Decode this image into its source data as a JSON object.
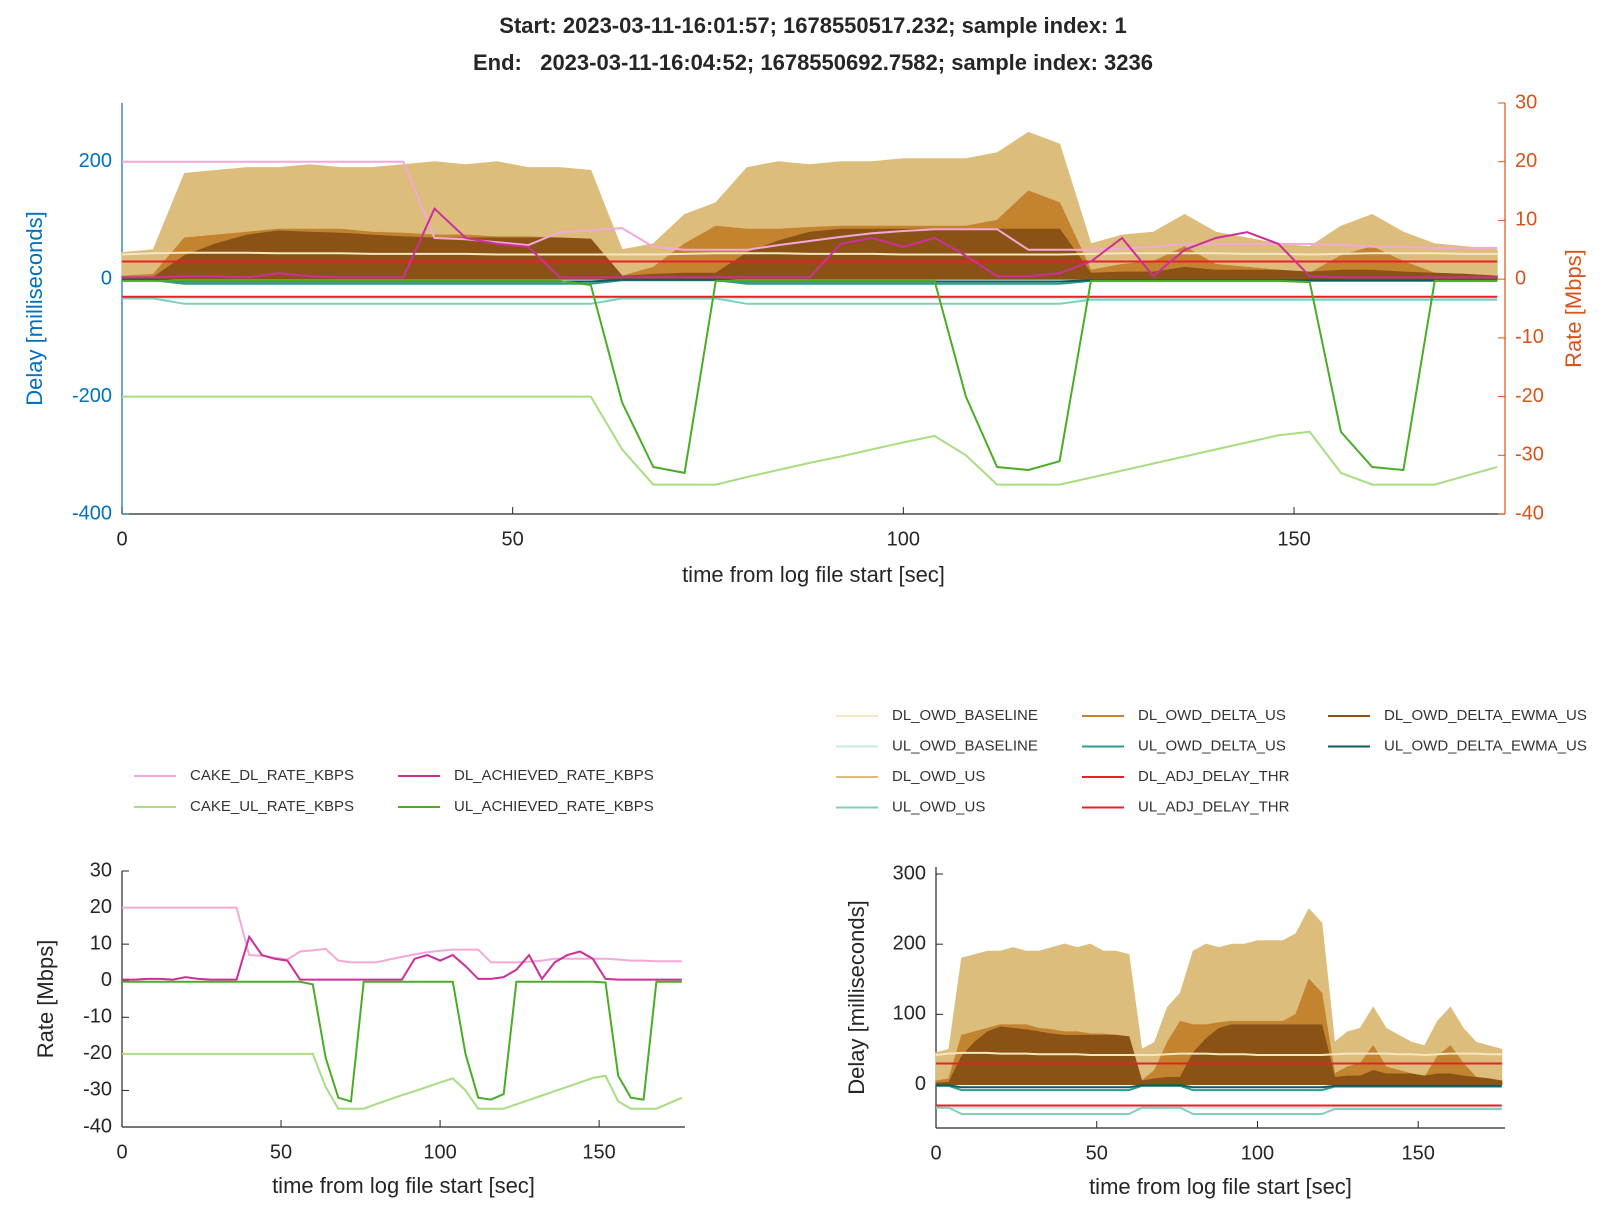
{
  "chart_data": [
    {
      "type": "line",
      "title": "Start: 2023-03-11-16:01:57; 1678550517.232; sample index: 1",
      "subtitle": "End:   2023-03-11-16:04:52; 1678550692.7582; sample index: 3236",
      "xlabel": "time from log file start [sec]",
      "ylabel": "Delay [milliseconds]",
      "y2label": "Rate [Mbps]",
      "xlim": [
        0,
        177
      ],
      "xticks": [
        0,
        50,
        100,
        150
      ],
      "ylim": [
        -400,
        300
      ],
      "yticks": [
        -400,
        -200,
        0,
        200
      ],
      "ycolor": "#0072bd",
      "y2lim": [
        -40,
        30
      ],
      "y2ticks": [
        -40,
        -30,
        -20,
        -10,
        0,
        10,
        20,
        30
      ],
      "y2color": "#d95319"
    },
    {
      "type": "line",
      "xlabel": "time from log file start [sec]",
      "ylabel": "Rate [Mbps]",
      "xlim": [
        0,
        177
      ],
      "xticks": [
        0,
        50,
        100,
        150
      ],
      "ylim": [
        -40,
        30
      ],
      "yticks": [
        -40,
        -30,
        -20,
        -10,
        0,
        10,
        20,
        30
      ],
      "x": [
        0,
        4,
        8,
        12,
        16,
        20,
        24,
        28,
        32,
        36,
        40,
        44,
        48,
        52,
        56,
        60,
        64,
        68,
        72,
        76,
        80,
        84,
        88,
        92,
        96,
        100,
        104,
        108,
        112,
        116,
        120,
        124,
        128,
        132,
        136,
        140,
        144,
        148,
        152,
        156,
        160,
        164,
        168,
        172,
        176
      ],
      "series": [
        {
          "name": "CAKE_DL_RATE_KBPS",
          "color": "#f4a8d8",
          "axis": "y2",
          "values": [
            20,
            20,
            20,
            20,
            20,
            20,
            20,
            20,
            20,
            20,
            7,
            6.8,
            6.3,
            5.8,
            8,
            8.3,
            8.7,
            5.5,
            5,
            5,
            5,
            5.8,
            6.5,
            7.2,
            7.8,
            8.2,
            8.5,
            8.5,
            8.5,
            5,
            5,
            5,
            5.2,
            5.5,
            6,
            6,
            6,
            6,
            6,
            5.8,
            5.5,
            5.5,
            5.3,
            5.3,
            5.3
          ]
        },
        {
          "name": "CAKE_UL_RATE_KBPS",
          "color": "#a8dd80",
          "axis": "y2",
          "values": [
            -20,
            -20,
            -20,
            -20,
            -20,
            -20,
            -20,
            -20,
            -20,
            -20,
            -20,
            -20,
            -20,
            -20,
            -20,
            -20,
            -29,
            -35,
            -35,
            -35,
            -33.7,
            -32.5,
            -31.3,
            -30.2,
            -29,
            -27.8,
            -26.7,
            -30,
            -35,
            -35,
            -35,
            -33.8,
            -32.6,
            -31.4,
            -30.2,
            -29,
            -27.8,
            -26.6,
            -26,
            -33,
            -35,
            -35,
            -35,
            -33.5,
            -32
          ]
        },
        {
          "name": "DL_ACHIEVED_RATE_KBPS",
          "color": "#cc2f9a",
          "axis": "y2",
          "values": [
            0.3,
            0.3,
            0.5,
            0.5,
            0.3,
            1,
            0.5,
            0.3,
            0.3,
            0.3,
            12,
            7,
            6,
            5.5,
            0.3,
            0.3,
            0.3,
            0.3,
            0.3,
            0.3,
            0.3,
            0.3,
            0.3,
            6,
            7,
            5.5,
            7,
            4,
            0.5,
            0.5,
            1,
            3,
            7,
            0.5,
            5,
            7,
            8,
            6,
            0.5,
            0.3,
            0.3,
            0.3,
            0.3,
            0.3,
            0.3
          ]
        },
        {
          "name": "UL_ACHIEVED_RATE_KBPS",
          "color": "#4aac27",
          "axis": "y2",
          "values": [
            -0.3,
            -0.3,
            -0.3,
            -0.3,
            -0.3,
            -0.3,
            -0.3,
            -0.3,
            -0.3,
            -0.3,
            -0.3,
            -0.3,
            -0.3,
            -0.3,
            -0.3,
            -1,
            -21,
            -32,
            -33,
            -0.3,
            -0.3,
            -0.3,
            -0.3,
            -0.3,
            -0.3,
            -0.3,
            -0.3,
            -20,
            -32,
            -32.5,
            -31,
            -0.3,
            -0.3,
            -0.3,
            -0.3,
            -0.3,
            -0.3,
            -0.3,
            -0.5,
            -26,
            -32,
            -32.5,
            -0.3,
            -0.3,
            -0.3
          ]
        }
      ]
    },
    {
      "type": "line",
      "xlabel": "time from log file start [sec]",
      "ylabel": "Delay [milliseconds]",
      "xlim": [
        0,
        177
      ],
      "xticks": [
        0,
        50,
        100,
        150
      ],
      "ylim": [
        -62,
        310
      ],
      "yticks": [
        0,
        100,
        200,
        300
      ],
      "x": [
        0,
        4,
        8,
        12,
        16,
        20,
        24,
        28,
        32,
        36,
        40,
        44,
        48,
        52,
        56,
        60,
        64,
        68,
        72,
        76,
        80,
        84,
        88,
        92,
        96,
        100,
        104,
        108,
        112,
        116,
        120,
        124,
        128,
        132,
        136,
        140,
        144,
        148,
        152,
        156,
        160,
        164,
        168,
        172,
        176
      ],
      "series": [
        {
          "name": "DL_OWD_BASELINE",
          "color": "#f5e6c2",
          "values": [
            42,
            44,
            45,
            45,
            45,
            44,
            44,
            44,
            43,
            43,
            43,
            43,
            42,
            42,
            42,
            42,
            42,
            42,
            43,
            44,
            44,
            44,
            43,
            43,
            43,
            42,
            42,
            42,
            42,
            42,
            42,
            43,
            44,
            44,
            44,
            44,
            43,
            43,
            42,
            43,
            44,
            44,
            44,
            43,
            43
          ]
        },
        {
          "name": "UL_OWD_BASELINE",
          "color": "#c8eae6",
          "values": [
            -33,
            -33,
            -33,
            -33,
            -33,
            -33,
            -33,
            -33,
            -33,
            -33,
            -33,
            -33,
            -33,
            -33,
            -33,
            -33,
            -33,
            -33,
            -33,
            -33,
            -33,
            -33,
            -33,
            -33,
            -33,
            -33,
            -33,
            -33,
            -33,
            -33,
            -33,
            -33,
            -33,
            -33,
            -33,
            -33,
            -33,
            -33,
            -33,
            -33,
            -33,
            -33,
            -33,
            -33,
            -33
          ]
        },
        {
          "name": "DL_OWD_US",
          "color": "#dcbd7c",
          "area": true,
          "values": [
            45,
            50,
            180,
            185,
            190,
            190,
            195,
            190,
            190,
            195,
            200,
            195,
            200,
            190,
            190,
            185,
            50,
            60,
            110,
            130,
            190,
            200,
            195,
            200,
            200,
            205,
            205,
            205,
            215,
            250,
            230,
            60,
            75,
            80,
            110,
            80,
            70,
            60,
            55,
            90,
            110,
            80,
            60,
            55,
            50
          ]
        },
        {
          "name": "UL_OWD_US",
          "color": "#7fcfc0",
          "values": [
            -33,
            -33,
            -42,
            -42,
            -42,
            -42,
            -42,
            -42,
            -42,
            -42,
            -42,
            -42,
            -42,
            -42,
            -42,
            -42,
            -33,
            -33,
            -33,
            -33,
            -42,
            -42,
            -42,
            -42,
            -42,
            -42,
            -42,
            -42,
            -42,
            -42,
            -42,
            -35,
            -35,
            -35,
            -35,
            -35,
            -35,
            -35,
            -35,
            -35,
            -35,
            -35,
            -35,
            -35,
            -35
          ]
        },
        {
          "name": "DL_OWD_DELTA_US",
          "color": "#c3832f",
          "area": true,
          "values": [
            5,
            8,
            70,
            75,
            80,
            85,
            85,
            85,
            80,
            78,
            75,
            75,
            72,
            72,
            70,
            68,
            5,
            20,
            60,
            90,
            85,
            85,
            88,
            90,
            90,
            90,
            90,
            90,
            100,
            150,
            130,
            15,
            25,
            30,
            55,
            25,
            20,
            15,
            10,
            40,
            55,
            30,
            10,
            8,
            5
          ]
        },
        {
          "name": "UL_OWD_DELTA_US",
          "color": "#2a9d8f",
          "values": [
            -2,
            -2,
            -8,
            -8,
            -8,
            -8,
            -8,
            -8,
            -8,
            -8,
            -8,
            -8,
            -8,
            -8,
            -8,
            -8,
            -2,
            -2,
            -2,
            -2,
            -8,
            -8,
            -8,
            -8,
            -8,
            -8,
            -8,
            -8,
            -8,
            -8,
            -8,
            -3,
            -3,
            -3,
            -3,
            -3,
            -3,
            -3,
            -3,
            -3,
            -3,
            -3,
            -3,
            -3,
            -3
          ]
        },
        {
          "name": "DL_ADJ_DELAY_THR",
          "color": "#e8202a",
          "values": [
            30,
            30,
            30,
            30,
            30,
            30,
            30,
            30,
            30,
            30,
            30,
            30,
            30,
            30,
            30,
            30,
            30,
            30,
            30,
            30,
            30,
            30,
            30,
            30,
            30,
            30,
            30,
            30,
            30,
            30,
            30,
            30,
            30,
            30,
            30,
            30,
            30,
            30,
            30,
            30,
            30,
            30,
            30,
            30,
            30
          ]
        },
        {
          "name": "UL_ADJ_DELAY_THR",
          "color": "#e8202a",
          "values": [
            -30,
            -30,
            -30,
            -30,
            -30,
            -30,
            -30,
            -30,
            -30,
            -30,
            -30,
            -30,
            -30,
            -30,
            -30,
            -30,
            -30,
            -30,
            -30,
            -30,
            -30,
            -30,
            -30,
            -30,
            -30,
            -30,
            -30,
            -30,
            -30,
            -30,
            -30,
            -30,
            -30,
            -30,
            -30,
            -30,
            -30,
            -30,
            -30,
            -30,
            -30,
            -30,
            -30,
            -30,
            -30
          ]
        },
        {
          "name": "DL_OWD_DELTA_EWMA_US",
          "color": "#8b5216",
          "area": true,
          "values": [
            2,
            3,
            40,
            60,
            75,
            82,
            80,
            78,
            75,
            72,
            70,
            70,
            70,
            70,
            70,
            68,
            5,
            8,
            10,
            10,
            45,
            65,
            80,
            85,
            85,
            85,
            85,
            85,
            85,
            85,
            85,
            10,
            12,
            12,
            20,
            15,
            15,
            15,
            12,
            15,
            15,
            12,
            10,
            8,
            5
          ]
        },
        {
          "name": "UL_OWD_DELTA_EWMA_US",
          "color": "#0d5e5a",
          "values": [
            -1,
            -1,
            -4,
            -4,
            -4,
            -4,
            -4,
            -4,
            -4,
            -4,
            -4,
            -4,
            -4,
            -4,
            -4,
            -4,
            -1,
            -1,
            -1,
            -1,
            -4,
            -4,
            -4,
            -4,
            -4,
            -4,
            -4,
            -4,
            -4,
            -4,
            -4,
            -2,
            -2,
            -2,
            -2,
            -2,
            -2,
            -2,
            -2,
            -2,
            -2,
            -2,
            -2,
            -2,
            -2
          ]
        }
      ]
    }
  ]
}
